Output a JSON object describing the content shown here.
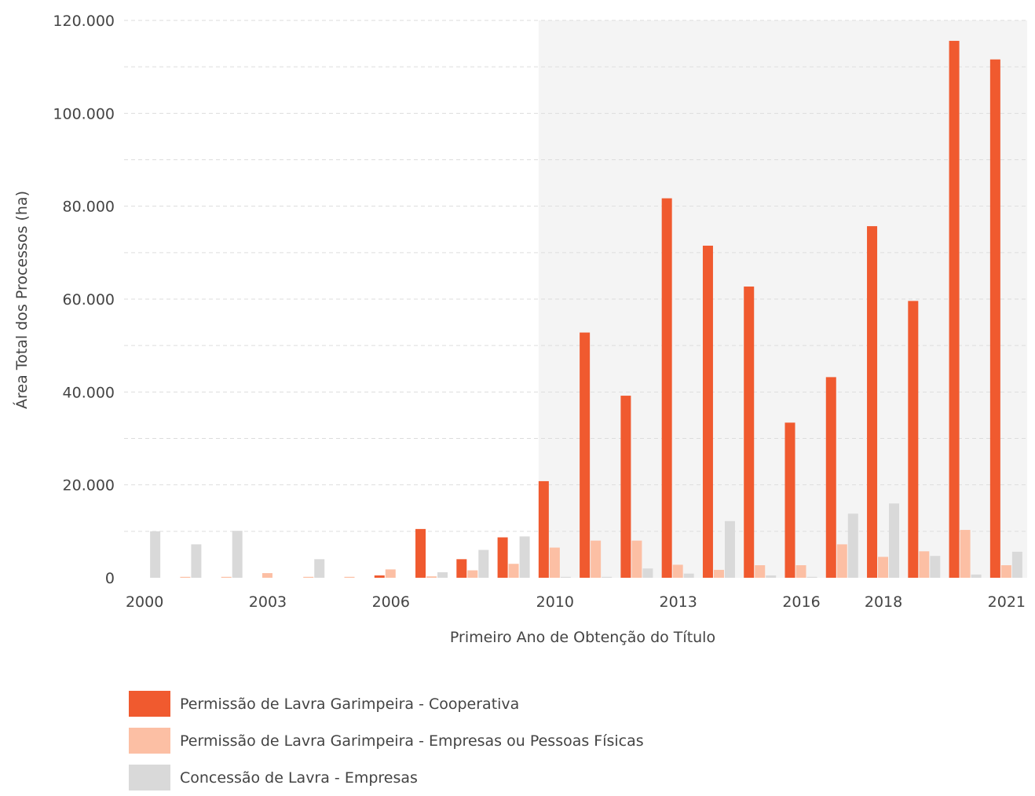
{
  "chart_data": {
    "type": "bar",
    "xlabel": "Primeiro Ano de Obtenção do Título",
    "ylabel": "Área Total dos Processos (ha)",
    "ylim": [
      0,
      120000
    ],
    "y_ticks": [
      "0",
      "20.000",
      "40.000",
      "60.000",
      "80.000",
      "100.000",
      "120.000"
    ],
    "y_tick_values": [
      0,
      20000,
      40000,
      60000,
      80000,
      100000,
      120000
    ],
    "grid": true,
    "highlight_range": [
      2010,
      2021
    ],
    "legend_position": "bottom-left",
    "categories": [
      2000,
      2001,
      2002,
      2003,
      2004,
      2005,
      2006,
      2007,
      2008,
      2009,
      2010,
      2011,
      2012,
      2013,
      2014,
      2015,
      2016,
      2017,
      2018,
      2019,
      2020,
      2021
    ],
    "x_tick_labels": [
      "2000",
      "2003",
      "2006",
      "2010",
      "2013",
      "2016",
      "2018",
      "2021"
    ],
    "series": [
      {
        "name": "Permissão de Lavra Garimpeira - Cooperativa",
        "color": "#f05a2f",
        "values": [
          0,
          0,
          0,
          0,
          0,
          0,
          500,
          10500,
          4000,
          8700,
          20800,
          52800,
          39200,
          81700,
          71500,
          62700,
          33400,
          43200,
          75700,
          59600,
          115600,
          111600
        ]
      },
      {
        "name": "Permissão de Lavra Garimpeira - Empresas ou Pessoas Físicas",
        "color": "#fcbfa4",
        "values": [
          0,
          200,
          200,
          1000,
          200,
          200,
          1800,
          300,
          1600,
          3000,
          6500,
          8000,
          8000,
          2800,
          1700,
          2700,
          2700,
          7200,
          4500,
          5700,
          10300,
          2700
        ]
      },
      {
        "name": "Concessão de Lavra - Empresas",
        "color": "#d9d9d9",
        "values": [
          10000,
          7200,
          10100,
          0,
          4000,
          0,
          0,
          1200,
          6000,
          8900,
          200,
          200,
          2000,
          900,
          12200,
          500,
          200,
          13800,
          16000,
          4700,
          700,
          5600
        ]
      }
    ]
  }
}
